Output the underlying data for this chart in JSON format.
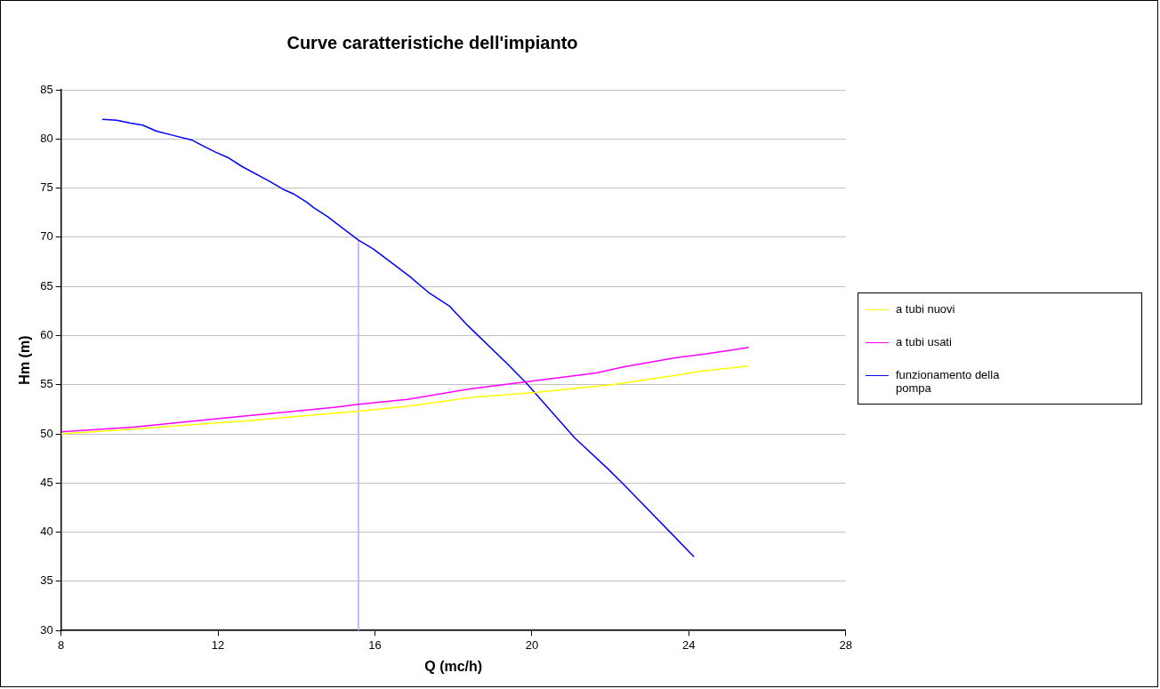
{
  "chart_data": {
    "type": "line",
    "title": "Curve caratteristiche dell'impianto",
    "xlabel": "Q (mc/h)",
    "ylabel": "Hm (m)",
    "xlim": [
      8,
      28
    ],
    "xticks": [
      8,
      12,
      16,
      20,
      24,
      28
    ],
    "ylim": [
      30,
      85
    ],
    "yticks": [
      30,
      35,
      40,
      45,
      50,
      55,
      60,
      65,
      70,
      75,
      80,
      85
    ],
    "grid": "y",
    "legend": "right",
    "marker": "none",
    "line_style": "solid",
    "series": [
      {
        "name": "a tubi nuovi",
        "color": "#ffff00",
        "x": [
          8,
          9.89,
          12.61,
          14.95,
          15.58,
          16.82,
          18.45,
          20.08,
          22.03,
          23.58,
          24.36,
          25.53
        ],
        "values": [
          50,
          50.5,
          51.3,
          52.1,
          52.3,
          52.8,
          53.7,
          54.2,
          55.0,
          55.9,
          56.4,
          56.9
        ]
      },
      {
        "name": "a tubi usati",
        "color": "#ff00ff",
        "x": [
          8,
          9.89,
          12.61,
          14.95,
          15.58,
          16.82,
          18.45,
          19.85,
          21.64,
          22.33,
          23.58,
          24.36,
          25.06,
          25.53
        ],
        "values": [
          50.2,
          50.7,
          51.8,
          52.7,
          53.0,
          53.5,
          54.6,
          55.3,
          56.2,
          56.8,
          57.7,
          58.1,
          58.5,
          58.8
        ]
      },
      {
        "name": "funzionamento della pompa",
        "color": "#0000ff",
        "x": [
          9.05,
          9.42,
          9.77,
          10.08,
          10.43,
          10.82,
          11.33,
          11.52,
          11.91,
          12.26,
          12.61,
          13.31,
          13.7,
          13.93,
          14.25,
          14.44,
          14.79,
          15.58,
          15.96,
          16.89,
          17.36,
          17.9,
          18.06,
          18.37,
          19.38,
          19.85,
          21.09,
          21.95,
          22.33,
          24.13
        ],
        "values": [
          82.0,
          81.9,
          81.6,
          81.4,
          80.8,
          80.4,
          79.9,
          79.5,
          78.7,
          78.1,
          77.2,
          75.7,
          74.8,
          74.4,
          73.6,
          73.0,
          72.1,
          69.7,
          68.8,
          66.0,
          64.4,
          63.0,
          62.3,
          61.0,
          57.1,
          55.2,
          49.6,
          46.4,
          44.9,
          37.5
        ]
      },
      {
        "color": "#cc99ff",
        "x": [
          15.58,
          15.58
        ],
        "values": [
          30,
          69.7
        ]
      }
    ]
  }
}
